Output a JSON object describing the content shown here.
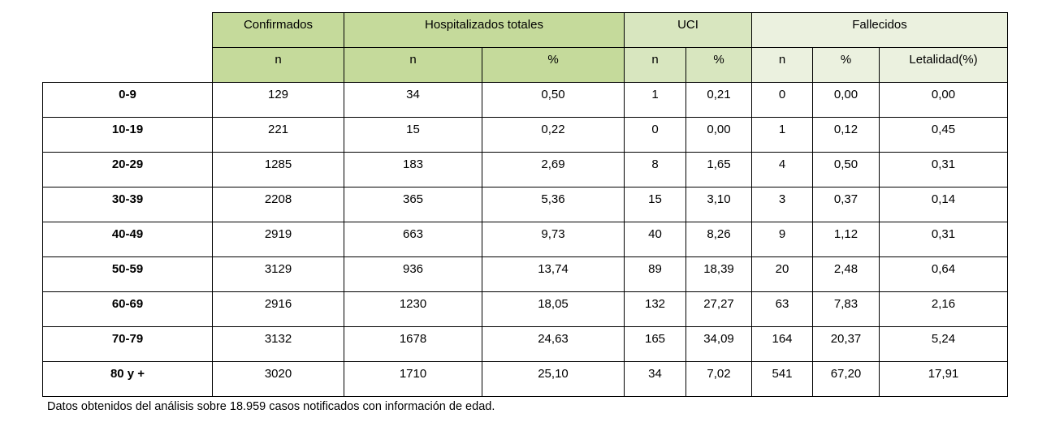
{
  "columns": {
    "group_headers": {
      "confirmados": "Confirmados",
      "hospitalizados": "Hospitalizados totales",
      "uci": "UCI",
      "fallecidos": "Fallecidos"
    },
    "sub_headers": {
      "conf_n": "n",
      "hosp_n": "n",
      "hosp_pct": "%",
      "uci_n": "n",
      "uci_pct": "%",
      "fall_n": "n",
      "fall_pct": "%",
      "letalidad": "Letalidad(%)"
    },
    "header_colors": {
      "confirmados": "#c5da9b",
      "hospitalizados": "#c5da9b",
      "uci": "#d8e6bf",
      "fallecidos": "#ebf1df"
    }
  },
  "rows": [
    {
      "age": "0-9",
      "conf_n": "129",
      "hosp_n": "34",
      "hosp_pct": "0,50",
      "uci_n": "1",
      "uci_pct": "0,21",
      "fall_n": "0",
      "fall_pct": "0,00",
      "letalidad": "0,00"
    },
    {
      "age": "10-19",
      "conf_n": "221",
      "hosp_n": "15",
      "hosp_pct": "0,22",
      "uci_n": "0",
      "uci_pct": "0,00",
      "fall_n": "1",
      "fall_pct": "0,12",
      "letalidad": "0,45"
    },
    {
      "age": "20-29",
      "conf_n": "1285",
      "hosp_n": "183",
      "hosp_pct": "2,69",
      "uci_n": "8",
      "uci_pct": "1,65",
      "fall_n": "4",
      "fall_pct": "0,50",
      "letalidad": "0,31"
    },
    {
      "age": "30-39",
      "conf_n": "2208",
      "hosp_n": "365",
      "hosp_pct": "5,36",
      "uci_n": "15",
      "uci_pct": "3,10",
      "fall_n": "3",
      "fall_pct": "0,37",
      "letalidad": "0,14"
    },
    {
      "age": "40-49",
      "conf_n": "2919",
      "hosp_n": "663",
      "hosp_pct": "9,73",
      "uci_n": "40",
      "uci_pct": "8,26",
      "fall_n": "9",
      "fall_pct": "1,12",
      "letalidad": "0,31"
    },
    {
      "age": "50-59",
      "conf_n": "3129",
      "hosp_n": "936",
      "hosp_pct": "13,74",
      "uci_n": "89",
      "uci_pct": "18,39",
      "fall_n": "20",
      "fall_pct": "2,48",
      "letalidad": "0,64"
    },
    {
      "age": "60-69",
      "conf_n": "2916",
      "hosp_n": "1230",
      "hosp_pct": "18,05",
      "uci_n": "132",
      "uci_pct": "27,27",
      "fall_n": "63",
      "fall_pct": "7,83",
      "letalidad": "2,16"
    },
    {
      "age": "70-79",
      "conf_n": "3132",
      "hosp_n": "1678",
      "hosp_pct": "24,63",
      "uci_n": "165",
      "uci_pct": "34,09",
      "fall_n": "164",
      "fall_pct": "20,37",
      "letalidad": "5,24"
    },
    {
      "age": "80 y +",
      "conf_n": "3020",
      "hosp_n": "1710",
      "hosp_pct": "25,10",
      "uci_n": "34",
      "uci_pct": "7,02",
      "fall_n": "541",
      "fall_pct": "67,20",
      "letalidad": "17,91"
    }
  ],
  "footnote": "Datos obtenidos del análisis sobre 18.959 casos notificados con información de edad."
}
